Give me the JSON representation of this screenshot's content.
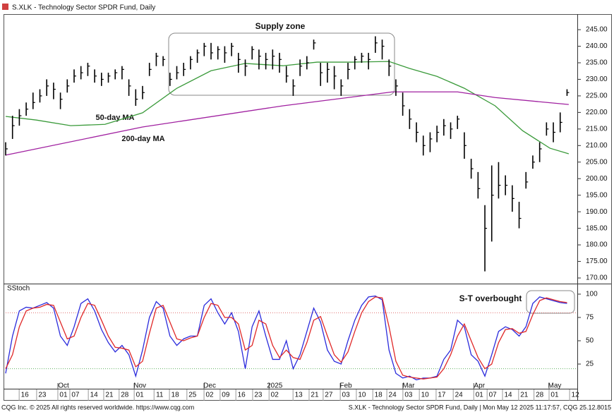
{
  "window": {
    "title": "S.XLK - Technology Sector SPDR Fund, Daily"
  },
  "footer": {
    "left": "CQG Inc. © 2025 All rights reserved worldwide. https://www.cqg.com",
    "right": "S.XLK - Technology Sector SPDR Fund, Daily | Mon May 12 2025 11:17:57, CQG 25.12.8015"
  },
  "chart_data": [
    {
      "type": "ohlc",
      "annotations": [
        "Supply zone"
      ],
      "color": "#000000",
      "xlim": [
        0,
        167
      ],
      "ylim": [
        168.3,
        249.7
      ],
      "yticks": [
        {
          "value": 245,
          "label": "245.00"
        },
        {
          "value": 240,
          "label": "240.00"
        },
        {
          "value": 235,
          "label": "235.00"
        },
        {
          "value": 230,
          "label": "230.00"
        },
        {
          "value": 225,
          "label": "225.00"
        },
        {
          "value": 220,
          "label": "220.00"
        },
        {
          "value": 215,
          "label": "215.00"
        },
        {
          "value": 210,
          "label": "210.00"
        },
        {
          "value": 205,
          "label": "205.00"
        },
        {
          "value": 200,
          "label": "200.00"
        },
        {
          "value": 195,
          "label": "195.00"
        },
        {
          "value": 190,
          "label": "190.00"
        },
        {
          "value": 185,
          "label": "185.00"
        },
        {
          "value": 180,
          "label": "180.00"
        },
        {
          "value": 175,
          "label": "175.00"
        },
        {
          "value": 170,
          "label": "170.00"
        }
      ],
      "x": [
        0,
        2,
        4,
        6,
        8,
        10,
        12,
        14,
        16,
        18,
        20,
        22,
        24,
        26,
        28,
        30,
        32,
        34,
        36,
        38,
        40,
        42,
        44,
        46,
        48,
        50,
        52,
        54,
        56,
        58,
        60,
        62,
        64,
        66,
        68,
        70,
        72,
        74,
        76,
        78,
        80,
        82,
        84,
        86,
        88,
        90,
        92,
        94,
        96,
        98,
        100,
        102,
        104,
        106,
        108,
        110,
        112,
        114,
        116,
        118,
        120,
        122,
        124,
        126,
        128,
        130,
        132,
        134,
        136,
        138,
        140,
        142,
        144,
        146,
        148,
        150,
        152,
        154,
        156,
        158,
        160,
        162,
        164
      ],
      "high": [
        211,
        219,
        221,
        223,
        226,
        227,
        230,
        229,
        226,
        230,
        233,
        234,
        235,
        233,
        232,
        232,
        233,
        234,
        230,
        227,
        228,
        235,
        238,
        237,
        232,
        234,
        235,
        237,
        239,
        241,
        241,
        240,
        240,
        241,
        238,
        236,
        240,
        239,
        238,
        239,
        238,
        234,
        230,
        236,
        237,
        242,
        235,
        235,
        234,
        230,
        235,
        237,
        238,
        238,
        243,
        242,
        236,
        230,
        226,
        221,
        217,
        213,
        214,
        216,
        218,
        217,
        219,
        214,
        206,
        202,
        192,
        204,
        205,
        201,
        198,
        193,
        202,
        207,
        211,
        217,
        217,
        220,
        227
      ],
      "low": [
        207,
        212,
        216,
        219,
        221,
        223,
        225,
        224,
        221,
        226,
        229,
        230,
        231,
        229,
        228,
        229,
        230,
        230,
        225,
        222,
        224,
        231,
        234,
        234,
        228,
        230,
        231,
        233,
        235,
        237,
        236,
        236,
        235,
        237,
        232,
        231,
        236,
        233,
        233,
        233,
        232,
        229,
        225,
        231,
        233,
        239,
        228,
        229,
        227,
        225,
        230,
        233,
        235,
        233,
        238,
        236,
        231,
        225,
        219,
        215,
        211,
        207,
        208,
        211,
        213,
        212,
        215,
        206,
        200,
        194,
        172,
        181,
        194,
        195,
        190,
        185,
        197,
        203,
        205,
        213,
        211,
        214,
        225
      ],
      "close": [
        209,
        216,
        219,
        221,
        223,
        225,
        228,
        227,
        224,
        228,
        231,
        232,
        234,
        231,
        230,
        231,
        232,
        233,
        228,
        224,
        226,
        233,
        237,
        236,
        230,
        232,
        233,
        236,
        238,
        240,
        238,
        239,
        238,
        240,
        236,
        234,
        239,
        237,
        236,
        237,
        236,
        231,
        228,
        234,
        235,
        241,
        232,
        233,
        231,
        228,
        233,
        236,
        237,
        236,
        241,
        240,
        234,
        228,
        222,
        218,
        214,
        210,
        212,
        214,
        216,
        215,
        218,
        210,
        203,
        197,
        185,
        195,
        198,
        198,
        194,
        188,
        199,
        205,
        209,
        215,
        214,
        217,
        226
      ],
      "series": [
        {
          "name": "50-day MA",
          "color": "#3a9a3a",
          "x": [
            0,
            9,
            19,
            29,
            40,
            50,
            60,
            70,
            81,
            91,
            101,
            112,
            118,
            126,
            134,
            143,
            151,
            159,
            164.5
          ],
          "values": [
            218.8,
            217.7,
            216,
            216.4,
            219.9,
            227.3,
            232.6,
            234.8,
            234.1,
            235.2,
            235.2,
            235.4,
            233.3,
            230.9,
            227.3,
            222,
            214.5,
            209.2,
            207.5
          ]
        },
        {
          "name": "200-day MA",
          "color": "#a020a0",
          "x": [
            0,
            40,
            81,
            113,
            132,
            143,
            164.5
          ],
          "values": [
            207.1,
            215.6,
            222,
            226.2,
            226.2,
            224.5,
            222.4
          ]
        }
      ]
    },
    {
      "type": "line",
      "title": "SStoch",
      "annotations": [
        "S-T overbought"
      ],
      "xlim": [
        0,
        167
      ],
      "ylim": [
        0.8,
        109.8
      ],
      "yticks": [
        100,
        75,
        50,
        25
      ],
      "reference_lines": [
        {
          "value": 80,
          "color": "#e07070"
        },
        {
          "value": 20,
          "color": "#60b060"
        }
      ],
      "xticks": [
        {
          "value": 5.6,
          "label": "16"
        },
        {
          "value": 10.7,
          "label": "23"
        },
        {
          "value": 16.9,
          "label": "01"
        },
        {
          "value": 20.4,
          "label": "07"
        },
        {
          "value": 25.8,
          "label": "14"
        },
        {
          "value": 30.3,
          "label": "21"
        },
        {
          "value": 34.8,
          "label": "28"
        },
        {
          "value": 39.2,
          "label": "01"
        },
        {
          "value": 45,
          "label": "11"
        },
        {
          "value": 49.5,
          "label": "18"
        },
        {
          "value": 54.6,
          "label": "25"
        },
        {
          "value": 59.6,
          "label": "02"
        },
        {
          "value": 64.3,
          "label": "09"
        },
        {
          "value": 68.9,
          "label": "16"
        },
        {
          "value": 73.8,
          "label": "23"
        },
        {
          "value": 78.6,
          "label": "02"
        },
        {
          "value": 85.6,
          "label": "13"
        },
        {
          "value": 90.3,
          "label": "21"
        },
        {
          "value": 94.4,
          "label": "27"
        },
        {
          "value": 99.4,
          "label": "03"
        },
        {
          "value": 104.1,
          "label": "10"
        },
        {
          "value": 108.9,
          "label": "18"
        },
        {
          "value": 113,
          "label": "24"
        },
        {
          "value": 117.7,
          "label": "03"
        },
        {
          "value": 122.5,
          "label": "10"
        },
        {
          "value": 127.4,
          "label": "17"
        },
        {
          "value": 132.4,
          "label": "24"
        },
        {
          "value": 138.4,
          "label": "01"
        },
        {
          "value": 142.3,
          "label": "07"
        },
        {
          "value": 146.8,
          "label": "14"
        },
        {
          "value": 151.5,
          "label": "21"
        },
        {
          "value": 156,
          "label": "28"
        },
        {
          "value": 160.4,
          "label": "01"
        },
        {
          "value": 166.4,
          "label": "12"
        }
      ],
      "month_ticks": [
        {
          "value": 16.9,
          "label": "Oct"
        },
        {
          "value": 39.2,
          "label": "Nov"
        },
        {
          "value": 59.6,
          "label": "Dec"
        },
        {
          "value": 78.6,
          "label": "2025"
        },
        {
          "value": 99.4,
          "label": "Feb"
        },
        {
          "value": 117.7,
          "label": "Mar"
        },
        {
          "value": 138.4,
          "label": "Apr"
        },
        {
          "value": 160.4,
          "label": "May"
        }
      ],
      "x": [
        0,
        2,
        4,
        6,
        8,
        10,
        12,
        14,
        16,
        18,
        20,
        22,
        24,
        26,
        28,
        30,
        32,
        34,
        36,
        38,
        40,
        42,
        44,
        46,
        48,
        50,
        52,
        54,
        56,
        58,
        60,
        62,
        64,
        66,
        68,
        70,
        72,
        74,
        76,
        78,
        80,
        82,
        84,
        86,
        88,
        90,
        92,
        94,
        96,
        98,
        100,
        102,
        104,
        106,
        108,
        110,
        112,
        114,
        116,
        118,
        120,
        122,
        124,
        126,
        128,
        130,
        132,
        134,
        136,
        138,
        140,
        142,
        144,
        146,
        148,
        150,
        152,
        154,
        156,
        158,
        160,
        162,
        164
      ],
      "series": [
        {
          "color": "#2b2bdc",
          "values": [
            15,
            55,
            82,
            86,
            85,
            88,
            91,
            85,
            55,
            45,
            65,
            90,
            95,
            82,
            62,
            48,
            38,
            45,
            35,
            12,
            40,
            75,
            92,
            85,
            55,
            45,
            52,
            55,
            55,
            88,
            95,
            80,
            68,
            80,
            60,
            20,
            65,
            82,
            55,
            30,
            30,
            50,
            20,
            35,
            60,
            85,
            70,
            40,
            28,
            25,
            50,
            72,
            88,
            97,
            98,
            94,
            40,
            15,
            10,
            12,
            8,
            10,
            10,
            12,
            30,
            40,
            72,
            65,
            35,
            28,
            12,
            35,
            60,
            65,
            62,
            55,
            65,
            90,
            97,
            95,
            93,
            91,
            90
          ]
        },
        {
          "color": "#e02828",
          "values": [
            20,
            35,
            65,
            82,
            85,
            86,
            89,
            88,
            70,
            52,
            55,
            75,
            90,
            88,
            72,
            55,
            43,
            42,
            40,
            22,
            28,
            58,
            85,
            88,
            70,
            52,
            50,
            53,
            55,
            75,
            90,
            88,
            75,
            75,
            68,
            40,
            45,
            72,
            68,
            45,
            32,
            40,
            32,
            30,
            48,
            72,
            76,
            55,
            35,
            27,
            38,
            60,
            80,
            92,
            97,
            96,
            65,
            28,
            13,
            11,
            10,
            9,
            10,
            11,
            20,
            35,
            55,
            68,
            50,
            32,
            20,
            25,
            48,
            62,
            63,
            58,
            60,
            78,
            93,
            96,
            94,
            92,
            91
          ]
        }
      ]
    }
  ]
}
